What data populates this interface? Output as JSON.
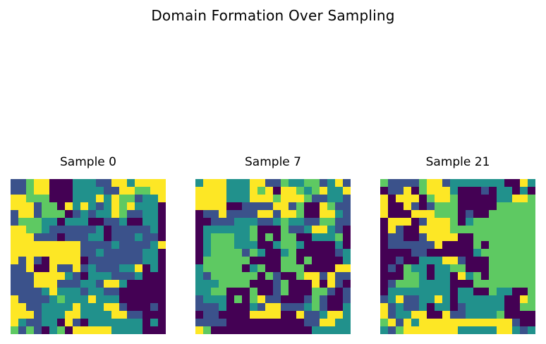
{
  "figure": {
    "title": "Domain Formation Over Sampling"
  },
  "chart_data": [
    {
      "type": "heatmap",
      "title": "Sample 0",
      "rows": 20,
      "cols": 20,
      "levels": 5,
      "colormap": [
        "#440154",
        "#3b528b",
        "#21918c",
        "#5ec962",
        "#fde725"
      ],
      "axes_visible": false,
      "grid": [
        "11344000222114424444",
        "11344000222211443344",
        "44333000222424331224",
        "44413304242124342220",
        "14413330121224311220",
        "13332202220011200220",
        "44332111111201111120",
        "44411101112201112110",
        "44444444411112111124",
        "44444444411211111220",
        "41410444401111111220",
        "11400411412111224020",
        "11144442102221112000",
        "11144411122144200000",
        "11112422212211000000",
        "41111232224222000000",
        "44112222422244100010",
        "44412224422224411000",
        "42112204102222222020",
        "31310230444442222000"
      ]
    },
    {
      "type": "heatmap",
      "title": "Sample 7",
      "rows": 20,
      "cols": 20,
      "levels": 5,
      "colormap": [
        "#440154",
        "#3b528b",
        "#21918c",
        "#5ec962",
        "#fde725"
      ],
      "axes_visible": false,
      "grid": [
        "24442224411322331241",
        "44442224340443234224",
        "44442224443444311221",
        "44440011114413004311",
        "01141111441443004421",
        "00111222112322113311",
        "02222223000311244210",
        "02333223030330022230",
        "02333222002332000020",
        "02333313200230000012",
        "03333330000330300002",
        "23333302300333000044",
        "21333333031003441411",
        "22233330001300040410",
        "22330003001300033101",
        "12220303411000131001",
        "11120002144111231002",
        "01100004444004112442",
        "11110000000000114422",
        "43000000000000022222"
      ]
    },
    {
      "type": "heatmap",
      "title": "Sample 21",
      "rows": 20,
      "cols": 20,
      "levels": 5,
      "colormap": [
        "#440154",
        "#3b528b",
        "#21918c",
        "#5ec962",
        "#fde725"
      ],
      "axes_visible": false,
      "grid": [
        "31111344122222220042",
        "01140344420001022020",
        "40444034430000022443",
        "40041013330000033333",
        "40004443330100333333",
        "04440144430233333333",
        "04100444433333333333",
        "01100144440033333333",
        "01111114000030333333",
        "00001100000023333333",
        "00100222441000333333",
        "01032202233000333333",
        "00033202204230333333",
        "01333222200033333333",
        "02222222202200322003",
        "12411224202222220043",
        "41211202201222220033",
        "41224400411222230000",
        "34142444444444444100",
        "21344444442222244212"
      ]
    }
  ]
}
